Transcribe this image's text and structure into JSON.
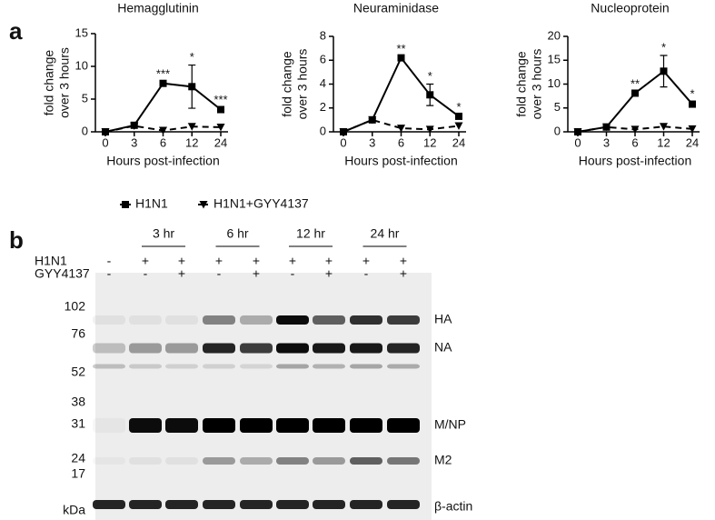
{
  "panel_a": "a",
  "chart_data": [
    {
      "type": "line",
      "title": "Hemagglutinin",
      "ylabel": [
        "fold change",
        "over 3 hours"
      ],
      "xlabel": "Hours post-infection",
      "categories": [
        "0",
        "3",
        "6",
        "12",
        "24"
      ],
      "ylim": [
        0,
        15
      ],
      "yticks": [
        0,
        5,
        10,
        15
      ],
      "series": [
        {
          "name": "H1N1",
          "color": "#000000",
          "marker": "square",
          "dash": false,
          "values": [
            0,
            1,
            7.4,
            6.9,
            3.4
          ],
          "errors": [
            0,
            0.2,
            0.2,
            3.3,
            0.3
          ],
          "annotations": [
            null,
            null,
            "***",
            "*",
            "***"
          ]
        },
        {
          "name": "H1N1+GYY4137",
          "color": "#000000",
          "marker": "triangle-down",
          "dash": true,
          "values": [
            0,
            0.9,
            0.2,
            0.8,
            0.7
          ]
        }
      ]
    },
    {
      "type": "line",
      "title": "Neuraminidase",
      "ylabel": [
        "fold change",
        "over 3 hours"
      ],
      "xlabel": "Hours post-infection",
      "categories": [
        "0",
        "3",
        "6",
        "12",
        "24"
      ],
      "ylim": [
        0,
        8
      ],
      "yticks": [
        0,
        2,
        4,
        6,
        8
      ],
      "series": [
        {
          "color": "#000000",
          "marker": "square",
          "dash": false,
          "values": [
            0,
            1,
            6.2,
            3.1,
            1.3
          ],
          "errors": [
            0,
            0.1,
            0.1,
            0.9,
            0.1
          ],
          "annotations": [
            null,
            null,
            "**",
            "*",
            "*"
          ]
        },
        {
          "color": "#000000",
          "marker": "triangle-down",
          "dash": true,
          "values": [
            0,
            1,
            0.3,
            0.2,
            0.5
          ]
        }
      ]
    },
    {
      "type": "line",
      "title": "Nucleoprotein",
      "ylabel": [
        "fold change",
        "over 3 hours"
      ],
      "xlabel": "Hours post-infection",
      "categories": [
        "0",
        "3",
        "6",
        "12",
        "24"
      ],
      "ylim": [
        0,
        20
      ],
      "yticks": [
        0,
        5,
        10,
        15,
        20
      ],
      "series": [
        {
          "color": "#000000",
          "marker": "square",
          "dash": false,
          "values": [
            0,
            1,
            8.1,
            12.7,
            5.8
          ],
          "errors": [
            0,
            0.1,
            0.3,
            3.3,
            0.5
          ],
          "annotations": [
            null,
            null,
            "**",
            "*",
            "*"
          ]
        },
        {
          "color": "#000000",
          "marker": "triangle-down",
          "dash": true,
          "values": [
            0,
            1,
            0.5,
            1.1,
            0.6
          ]
        }
      ]
    }
  ],
  "blot": {
    "panel_label": "b",
    "time_labels": [
      "3 hr",
      "6 hr",
      "12 hr",
      "24 hr"
    ],
    "rows": [
      {
        "label": "H1N1",
        "marks": [
          "-",
          "+",
          "+",
          "+",
          "+",
          "+",
          "+",
          "+",
          "+"
        ]
      },
      {
        "label": "GYY4137",
        "marks": [
          "-",
          "-",
          "+",
          "-",
          "+",
          "-",
          "+",
          "-",
          "+"
        ]
      }
    ],
    "mw": [
      "102",
      "76",
      "52",
      "38",
      "31",
      "24",
      "17"
    ],
    "mw_unit": "kDa",
    "bands": [
      "HA",
      "NA",
      "M/NP",
      "M2",
      "β-actin"
    ]
  }
}
